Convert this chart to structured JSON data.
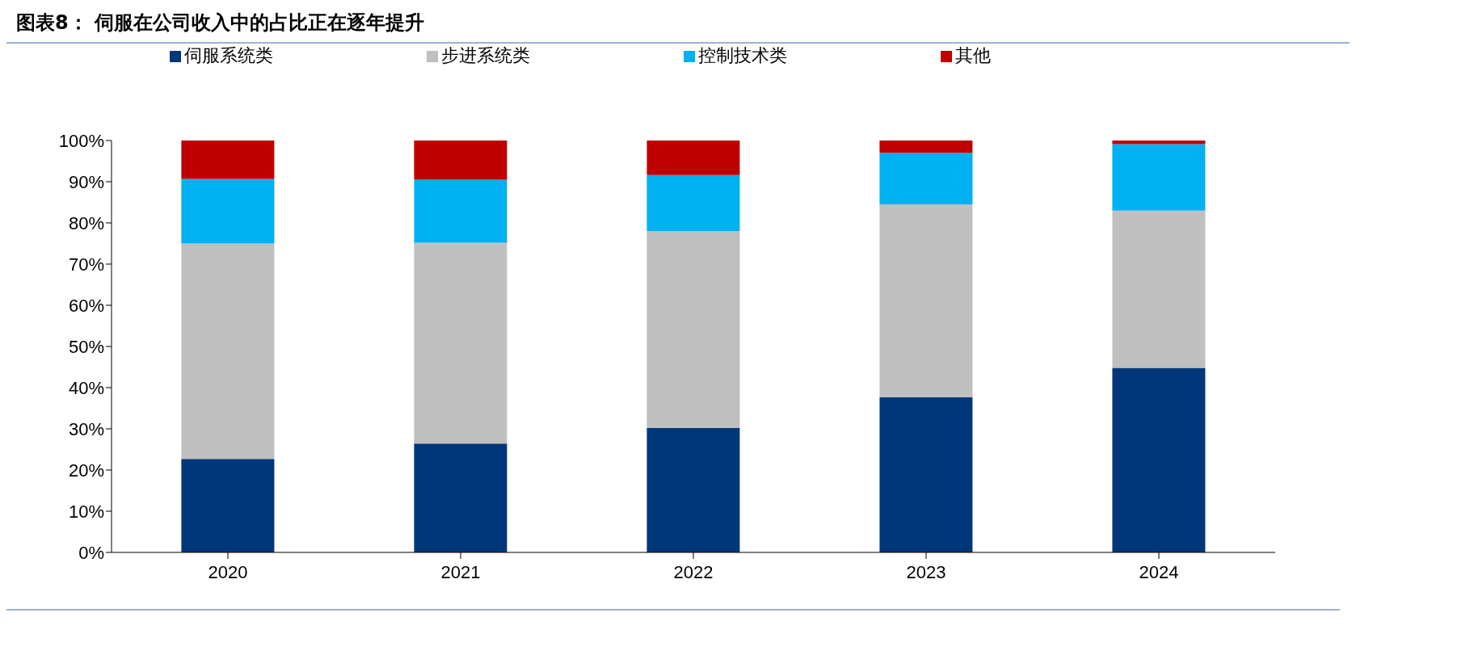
{
  "chart_data": {
    "type": "bar",
    "title": "图表8： 伺服在公司收入中的占比正在逐年提升",
    "stacked": true,
    "legend": "top",
    "grid": false,
    "categories": [
      "2020",
      "2021",
      "2022",
      "2023",
      "2024"
    ],
    "series": [
      {
        "name": "伺服系统类",
        "color": "#00377a",
        "values": [
          22.7,
          26.4,
          30.2,
          37.7,
          44.8
        ]
      },
      {
        "name": "步进系统类",
        "color": "#bfbfbf",
        "values": [
          52.3,
          48.8,
          47.8,
          46.8,
          38.2
        ]
      },
      {
        "name": "控制技术类",
        "color": "#00b0f0",
        "values": [
          15.7,
          15.3,
          13.6,
          12.5,
          16.1
        ]
      },
      {
        "name": "其他",
        "color": "#c00000",
        "values": [
          9.3,
          9.5,
          8.4,
          3.0,
          0.9
        ]
      }
    ],
    "ylim": [
      0,
      100
    ],
    "yticks": [
      {
        "value": 0,
        "label": "0%"
      },
      {
        "value": 10,
        "label": "10%"
      },
      {
        "value": 20,
        "label": "20%"
      },
      {
        "value": 30,
        "label": "30%"
      },
      {
        "value": 40,
        "label": "40%"
      },
      {
        "value": 50,
        "label": "50%"
      },
      {
        "value": 60,
        "label": "60%"
      },
      {
        "value": 70,
        "label": "70%"
      },
      {
        "value": 80,
        "label": "80%"
      },
      {
        "value": 90,
        "label": "90%"
      },
      {
        "value": 100,
        "label": "100%"
      }
    ]
  }
}
